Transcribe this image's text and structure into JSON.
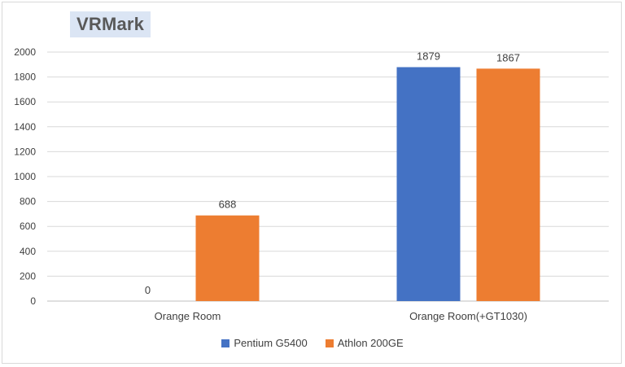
{
  "chart_data": {
    "type": "bar",
    "title": "VRMark",
    "categories": [
      "Orange Room",
      "Orange Room(+GT1030)"
    ],
    "series": [
      {
        "name": "Pentium G5400",
        "values": [
          0,
          1879
        ],
        "color": "#4472c4"
      },
      {
        "name": "Athlon 200GE",
        "values": [
          688,
          1867
        ],
        "color": "#ed7d31"
      }
    ],
    "yticks": [
      "0",
      "200",
      "400",
      "600",
      "800",
      "1000",
      "1200",
      "1400",
      "1600",
      "1800",
      "2000"
    ],
    "ylim": [
      0,
      2000
    ],
    "grid": true,
    "legend_position": "bottom"
  }
}
